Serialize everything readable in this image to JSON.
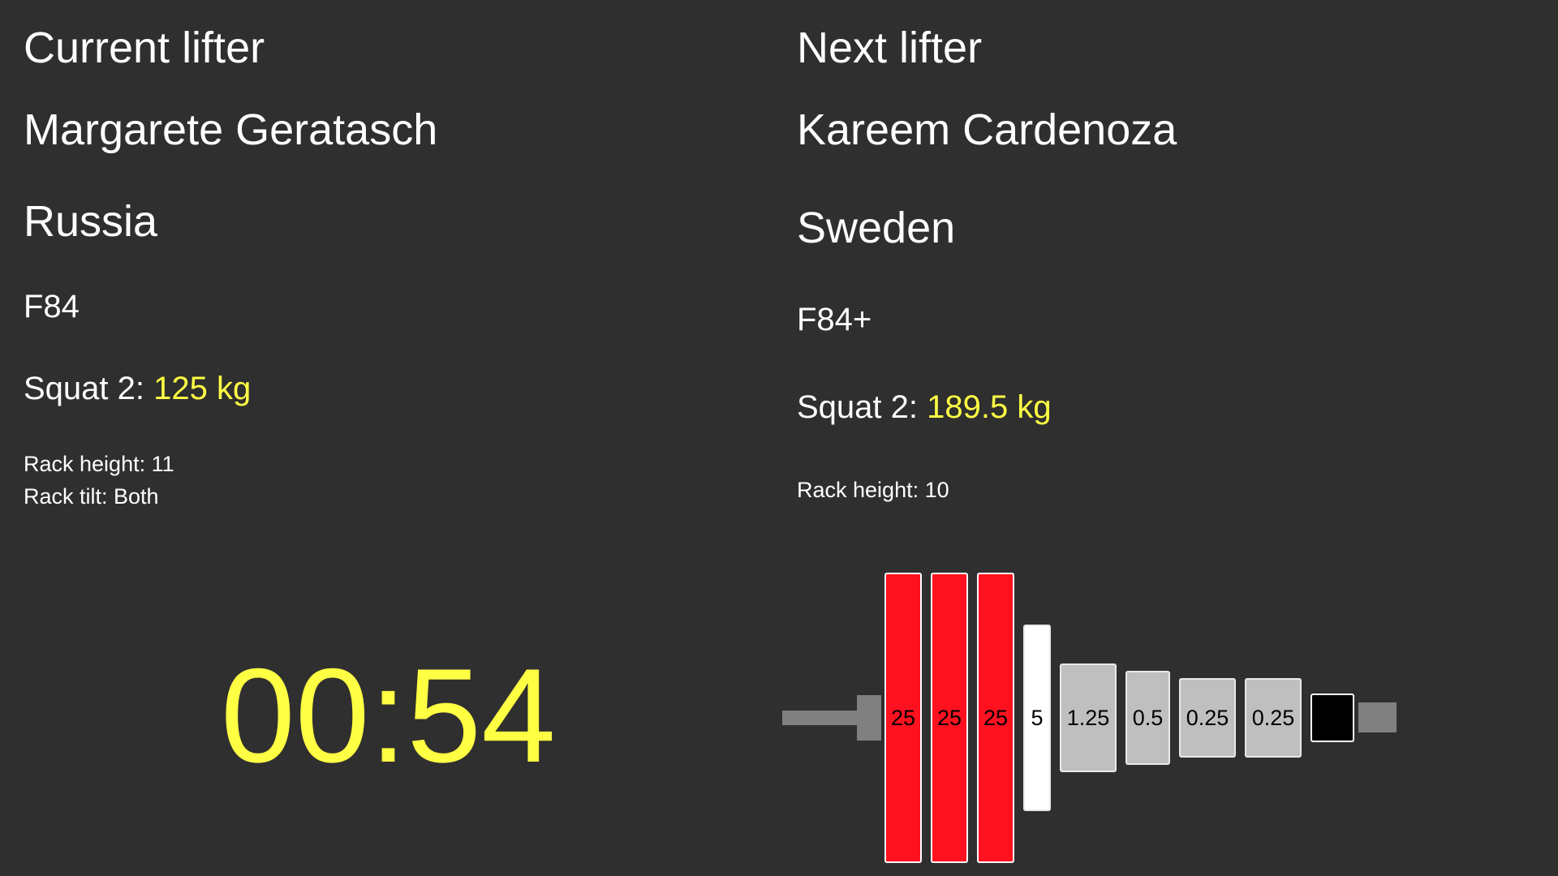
{
  "current": {
    "heading": "Current lifter",
    "name": "Margarete Geratasch",
    "country": "Russia",
    "division": "F84",
    "attempt_label": "Squat 2: ",
    "attempt_weight": "125 kg",
    "rack_height": "Rack height: 11",
    "rack_tilt": "Rack tilt: Both"
  },
  "next": {
    "heading": "Next lifter",
    "name": "Kareem Cardenoza",
    "country": "Sweden",
    "division": "F84+",
    "attempt_label": "Squat 2: ",
    "attempt_weight": "189.5 kg",
    "rack_height": "Rack height: 10"
  },
  "timer": "00:54",
  "plates": {
    "colors": {
      "red": "#ff1120",
      "white": "#ffffff",
      "grey": "#bfbfbf",
      "black": "#000000",
      "bar": "#808080",
      "highlight": "#ffff44"
    },
    "items": [
      {
        "label": "25",
        "kind": "red"
      },
      {
        "label": "25",
        "kind": "red"
      },
      {
        "label": "25",
        "kind": "red"
      },
      {
        "label": "5",
        "kind": "white"
      },
      {
        "label": "1.25",
        "kind": "grey"
      },
      {
        "label": "0.5",
        "kind": "grey"
      },
      {
        "label": "0.25",
        "kind": "grey"
      },
      {
        "label": "0.25",
        "kind": "grey"
      },
      {
        "label": "",
        "kind": "black"
      }
    ]
  }
}
